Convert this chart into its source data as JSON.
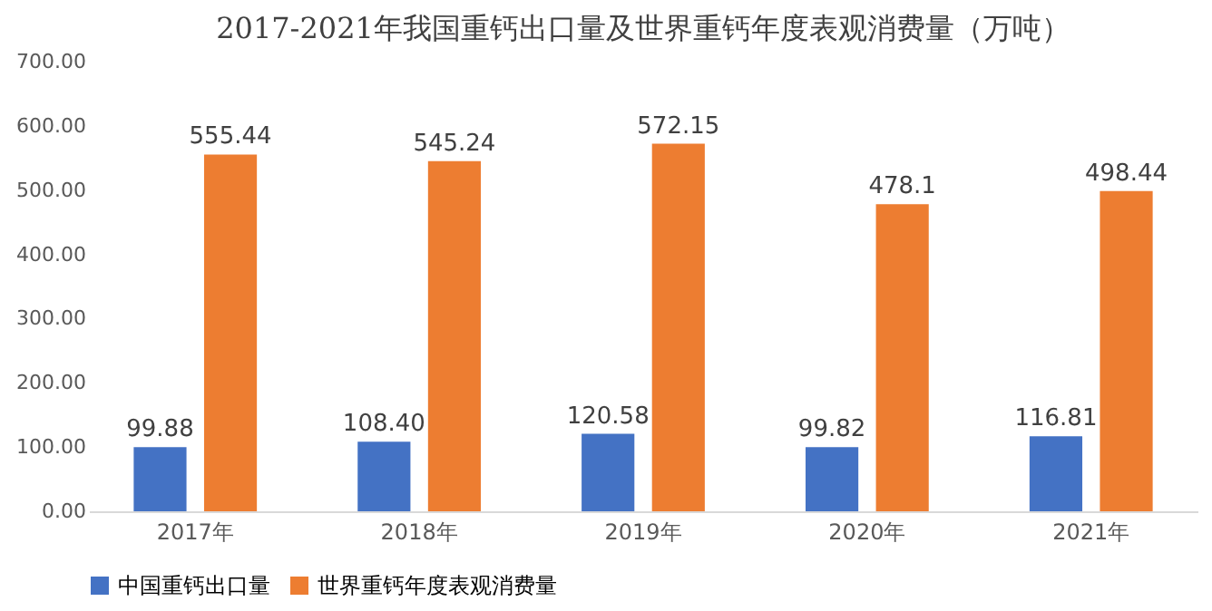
{
  "chart_data": {
    "type": "bar",
    "title": "2017-2021年我国重钙出口量及世界重钙年度表观消费量（万吨）",
    "categories": [
      "2017年",
      "2018年",
      "2019年",
      "2020年",
      "2021年"
    ],
    "series": [
      {
        "name": "中国重钙出口量",
        "color": "#4472c4",
        "values": [
          99.88,
          108.4,
          120.58,
          99.82,
          116.81
        ],
        "value_labels": [
          "99.88",
          "108.40",
          "120.58",
          "99.82",
          "116.81"
        ]
      },
      {
        "name": "世界重钙年度表观消费量",
        "color": "#ed7d31",
        "values": [
          555.44,
          545.24,
          572.15,
          478.1,
          498.44
        ],
        "value_labels": [
          "555.44",
          "545.24",
          "572.15",
          "478.1",
          "498.44"
        ]
      }
    ],
    "ylim": [
      0,
      700
    ],
    "yticks": [
      {
        "value": 0,
        "label": "0.00"
      },
      {
        "value": 100,
        "label": "100.00"
      },
      {
        "value": 200,
        "label": "200.00"
      },
      {
        "value": 300,
        "label": "300.00"
      },
      {
        "value": 400,
        "label": "400.00"
      },
      {
        "value": 500,
        "label": "500.00"
      },
      {
        "value": 600,
        "label": "600.00"
      },
      {
        "value": 700,
        "label": "700.00"
      }
    ],
    "grid": false,
    "legend": "bottom"
  }
}
